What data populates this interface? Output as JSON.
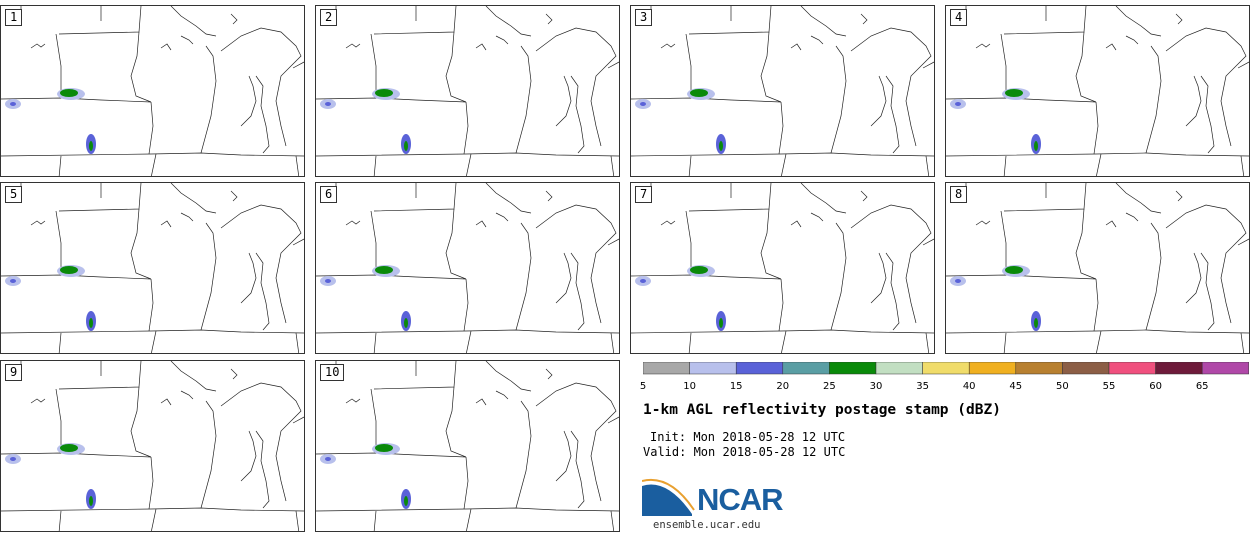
{
  "panels": [
    {
      "label": "1"
    },
    {
      "label": "2"
    },
    {
      "label": "3"
    },
    {
      "label": "4"
    },
    {
      "label": "5"
    },
    {
      "label": "6"
    },
    {
      "label": "7"
    },
    {
      "label": "8"
    },
    {
      "label": "9"
    },
    {
      "label": "10"
    }
  ],
  "colorbar": {
    "ticks": [
      "5",
      "10",
      "15",
      "20",
      "25",
      "30",
      "35",
      "40",
      "45",
      "50",
      "55",
      "60",
      "65"
    ],
    "colors": [
      "#a8a8a8",
      "#b8c0ec",
      "#5a62d8",
      "#5a9ea4",
      "#0a8a0a",
      "#c2dfc2",
      "#f0dc6a",
      "#f0b020",
      "#b88030",
      "#8c5e46",
      "#f0507e",
      "#6e1a3a",
      "#b048a8"
    ]
  },
  "title": "1-km AGL reflectivity postage stamp (dBZ)",
  "init": "Init: Mon 2018-05-28 12 UTC",
  "valid": "Valid: Mon 2018-05-28 12 UTC",
  "logo_text": "NCAR",
  "website": "ensemble.ucar.edu"
}
